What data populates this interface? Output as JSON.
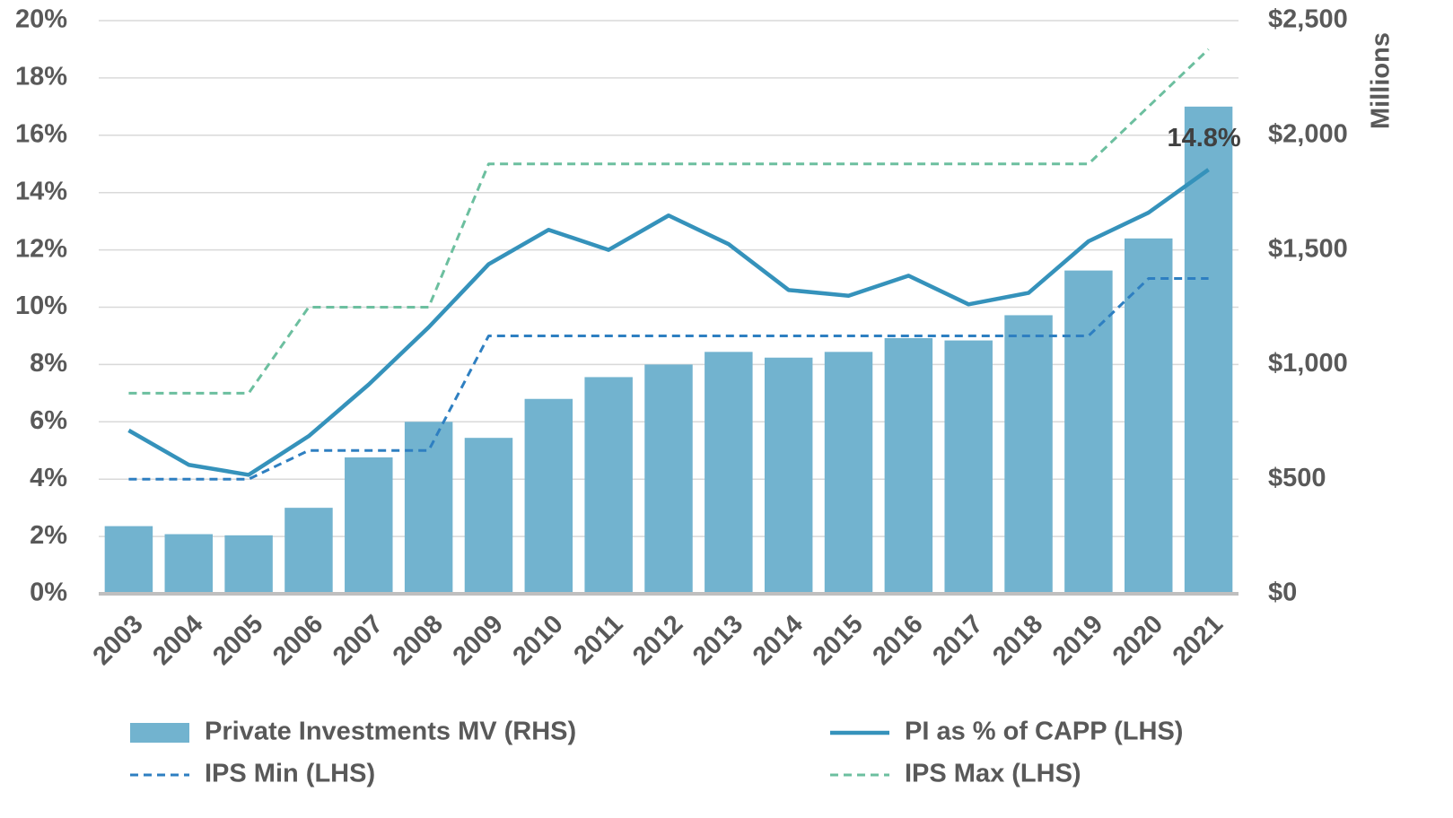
{
  "chart_data": {
    "type": "bar_line",
    "categories": [
      "2003",
      "2004",
      "2005",
      "2006",
      "2007",
      "2008",
      "2009",
      "2010",
      "2011",
      "2012",
      "2013",
      "2014",
      "2015",
      "2016",
      "2017",
      "2018",
      "2019",
      "2020",
      "2021"
    ],
    "series": [
      {
        "name": "Private Investments MV (RHS)",
        "type": "bar",
        "axis": "y2",
        "color": "#72b3cf",
        "values": [
          295,
          260,
          255,
          375,
          595,
          750,
          680,
          850,
          945,
          1000,
          1055,
          1030,
          1055,
          1115,
          1105,
          1215,
          1410,
          1550,
          2125
        ]
      },
      {
        "name": "PI as % of CAPP (LHS)",
        "type": "line",
        "color": "#3592bb",
        "dash": false,
        "values": [
          5.7,
          4.5,
          4.15,
          5.5,
          7.3,
          9.3,
          11.5,
          12.7,
          12.0,
          13.2,
          12.2,
          10.6,
          10.4,
          11.1,
          10.1,
          10.5,
          12.3,
          13.3,
          14.8
        ]
      },
      {
        "name": "IPS Min (LHS)",
        "type": "line",
        "color": "#2e7fc1",
        "dash": true,
        "values": [
          4,
          4,
          4,
          5,
          5,
          5,
          9,
          9,
          9,
          9,
          9,
          9,
          9,
          9,
          9,
          9,
          9,
          11,
          11
        ]
      },
      {
        "name": "IPS Max (LHS)",
        "type": "line",
        "color": "#6cbf9f",
        "dash": true,
        "values": [
          7,
          7,
          7,
          10,
          10,
          10,
          15,
          15,
          15,
          15,
          15,
          15,
          15,
          15,
          15,
          15,
          15,
          17,
          19
        ]
      }
    ],
    "ylim": [
      0,
      20
    ],
    "yticks": [
      {
        "value": 0,
        "label": "0%"
      },
      {
        "value": 2,
        "label": "2%"
      },
      {
        "value": 4,
        "label": "4%"
      },
      {
        "value": 6,
        "label": "6%"
      },
      {
        "value": 8,
        "label": "8%"
      },
      {
        "value": 10,
        "label": "10%"
      },
      {
        "value": 12,
        "label": "12%"
      },
      {
        "value": 14,
        "label": "14%"
      },
      {
        "value": 16,
        "label": "16%"
      },
      {
        "value": 18,
        "label": "18%"
      },
      {
        "value": 20,
        "label": "20%"
      }
    ],
    "y2lim": [
      0,
      2500
    ],
    "y2ticks": [
      {
        "value": 0,
        "label": "$0"
      },
      {
        "value": 500,
        "label": "$500"
      },
      {
        "value": 1000,
        "label": "$1,000"
      },
      {
        "value": 1500,
        "label": "$1,500"
      },
      {
        "value": 2000,
        "label": "$2,000"
      },
      {
        "value": 2500,
        "label": "$2,500"
      }
    ],
    "y2label": "Millions",
    "grid": true,
    "legend": "bottom",
    "annotations": [
      {
        "text": "14.8%",
        "series": 1,
        "index": 18
      }
    ]
  }
}
